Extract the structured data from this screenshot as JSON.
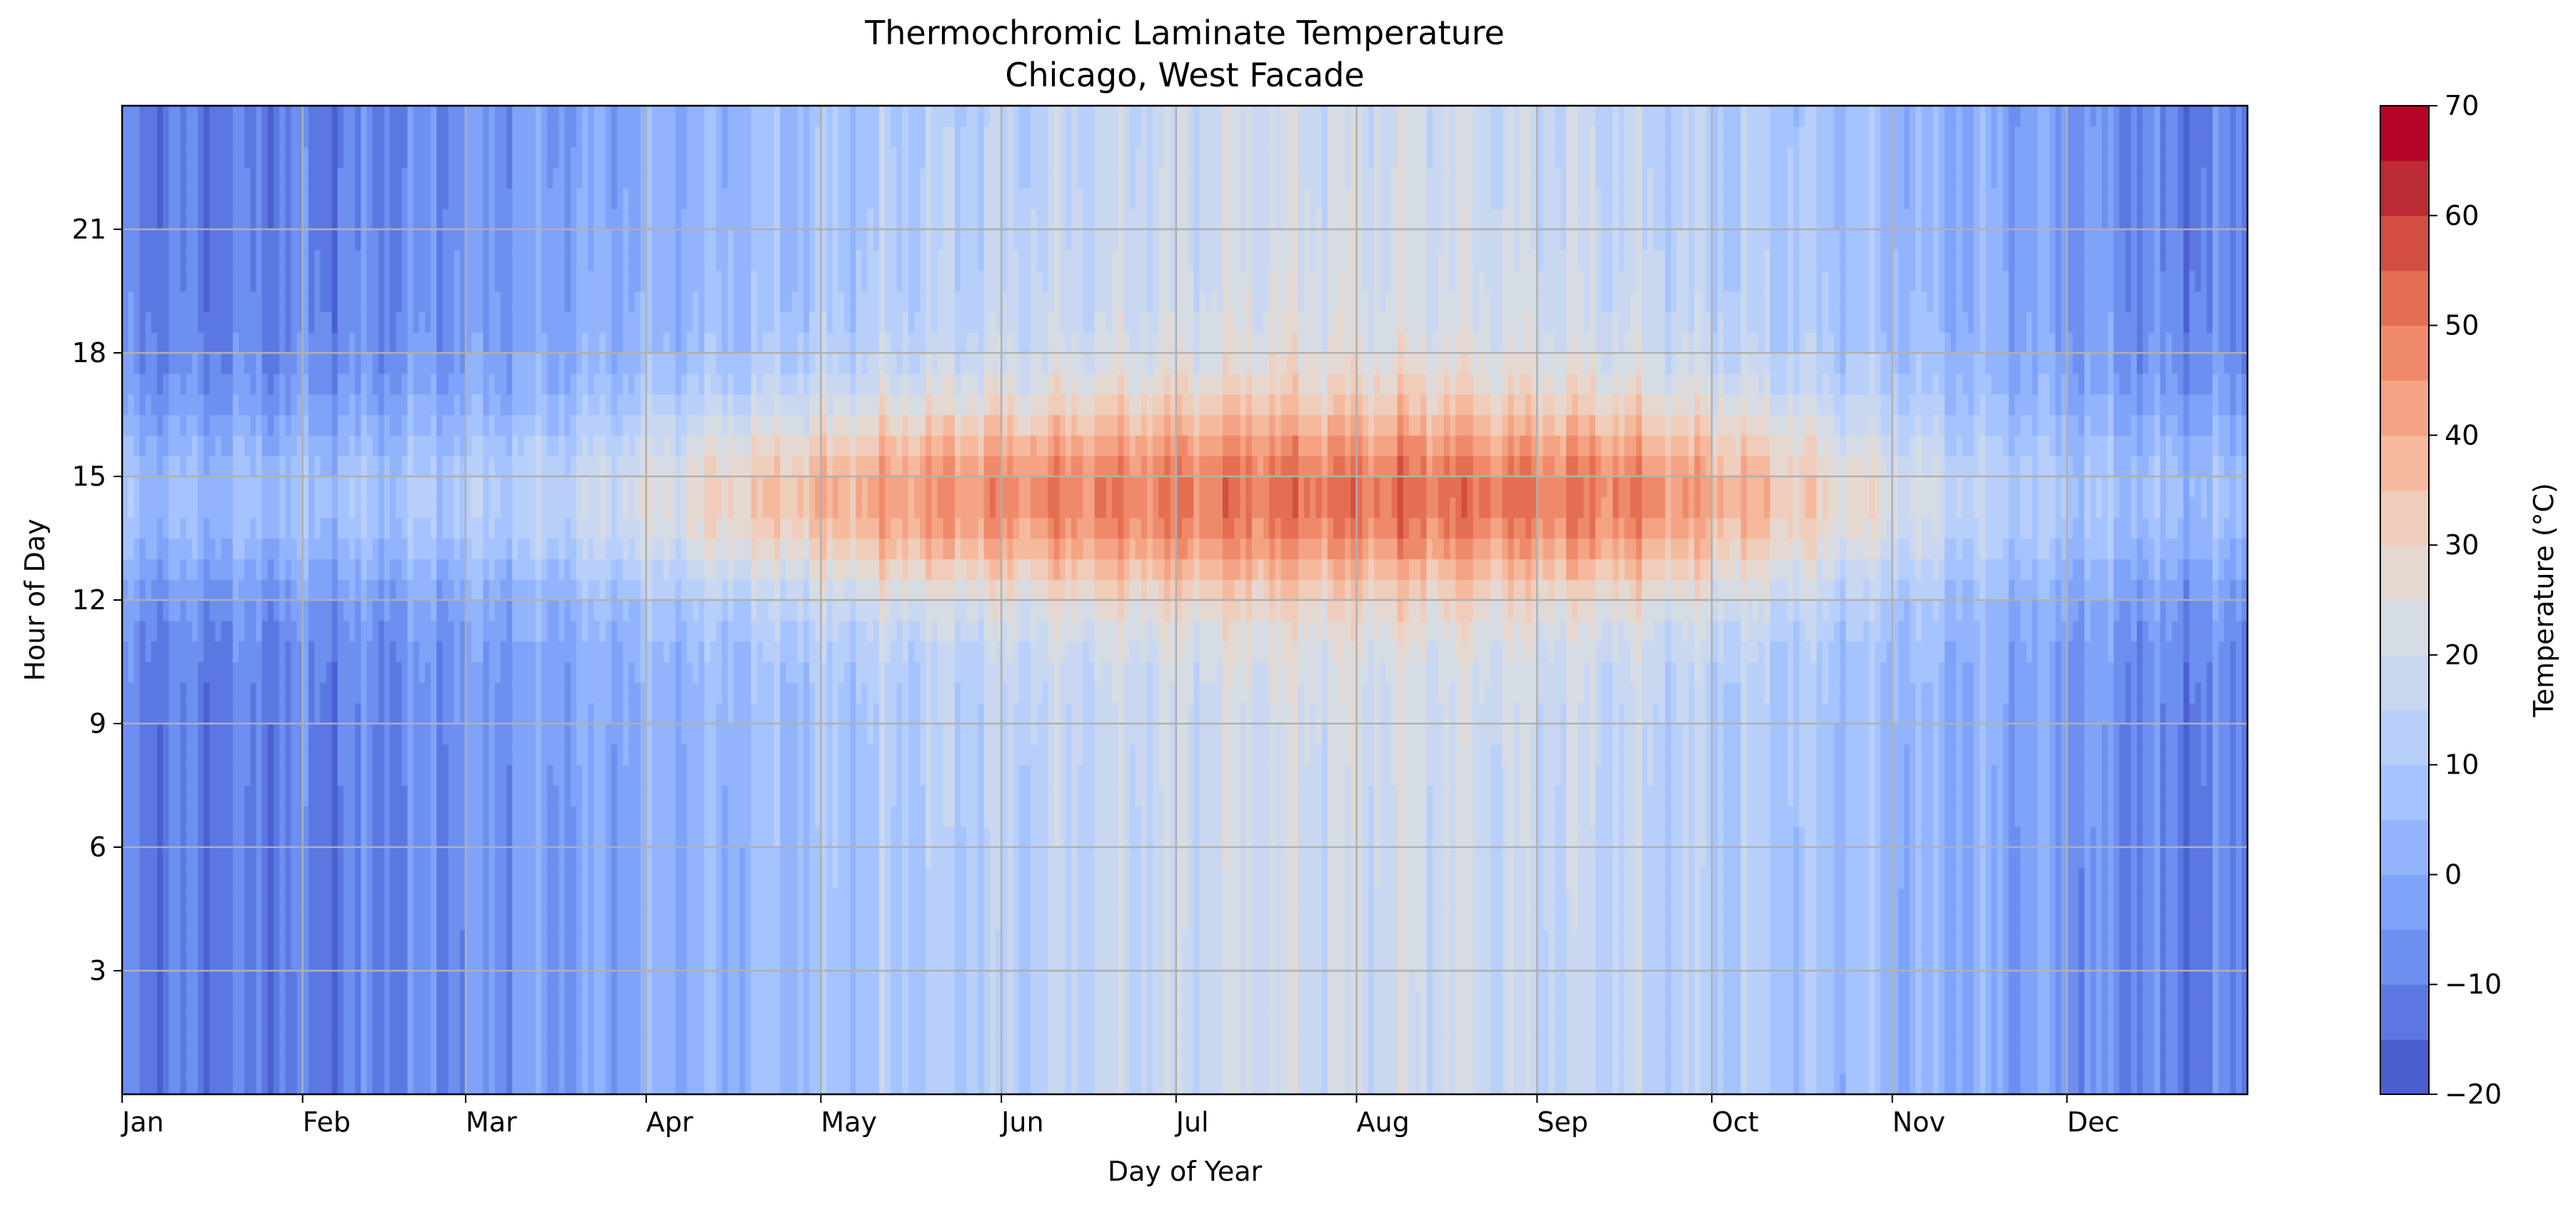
{
  "chart_data": {
    "type": "heatmap",
    "title": "Thermochromic Laminate Temperature",
    "subtitle": "Chicago, West Facade",
    "xlabel": "Day of Year",
    "ylabel": "Hour of Day",
    "xlim": [
      0,
      365
    ],
    "ylim": [
      0,
      24
    ],
    "x_ticks": [
      {
        "label": "Jan",
        "value": 0
      },
      {
        "label": "Feb",
        "value": 31
      },
      {
        "label": "Mar",
        "value": 59
      },
      {
        "label": "Apr",
        "value": 90
      },
      {
        "label": "May",
        "value": 120
      },
      {
        "label": "Jun",
        "value": 151
      },
      {
        "label": "Jul",
        "value": 181
      },
      {
        "label": "Aug",
        "value": 212
      },
      {
        "label": "Sep",
        "value": 243
      },
      {
        "label": "Oct",
        "value": 273
      },
      {
        "label": "Nov",
        "value": 304
      },
      {
        "label": "Dec",
        "value": 334
      }
    ],
    "y_ticks": [
      3,
      6,
      9,
      12,
      15,
      18,
      21
    ],
    "grid": true,
    "colorbar": {
      "label": "Temperature (°C)",
      "min": -20,
      "max": 70,
      "levels": [
        -20,
        -15,
        -10,
        -5,
        0,
        5,
        10,
        15,
        20,
        25,
        30,
        35,
        40,
        45,
        50,
        55,
        60,
        65,
        70
      ],
      "tick_labels": [
        "−20",
        "−10",
        "0",
        "10",
        "20",
        "30",
        "40",
        "50",
        "60",
        "70"
      ],
      "colors": [
        "#4a5fd0",
        "#5b78e2",
        "#6c8ff0",
        "#7fa3f8",
        "#92b4fd",
        "#a5c3fe",
        "#b8cffa",
        "#c9d7f0",
        "#d6dce4",
        "#e5d8d1",
        "#f0ccbb",
        "#f5b99d",
        "#f4a384",
        "#ee8a6a",
        "#e46e52",
        "#d24e40",
        "#bc2a33",
        "#b40426"
      ]
    },
    "monthly_profile": [
      {
        "month": "Jan",
        "night": -12,
        "afternoon_peak": 3
      },
      {
        "month": "Feb",
        "night": -10,
        "afternoon_peak": 6
      },
      {
        "month": "Mar",
        "night": -3,
        "afternoon_peak": 12
      },
      {
        "month": "Apr",
        "night": 3,
        "afternoon_peak": 28
      },
      {
        "month": "May",
        "night": 10,
        "afternoon_peak": 40
      },
      {
        "month": "Jun",
        "night": 15,
        "afternoon_peak": 45
      },
      {
        "month": "Jul",
        "night": 20,
        "afternoon_peak": 48
      },
      {
        "month": "Aug",
        "night": 19,
        "afternoon_peak": 48
      },
      {
        "month": "Sep",
        "night": 15,
        "afternoon_peak": 45
      },
      {
        "month": "Oct",
        "night": 8,
        "afternoon_peak": 30
      },
      {
        "month": "Nov",
        "night": 0,
        "afternoon_peak": 12
      },
      {
        "month": "Dec",
        "night": -10,
        "afternoon_peak": 4
      }
    ]
  }
}
